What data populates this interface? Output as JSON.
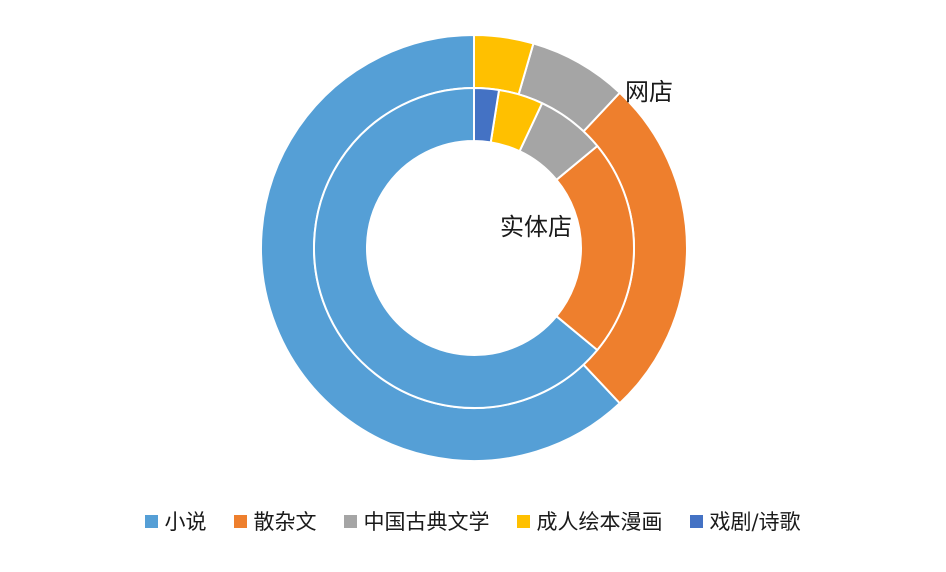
{
  "chart_data": {
    "type": "donut",
    "categories": [
      "小说",
      "散杂文",
      "中国古典文学",
      "成人绘本漫画",
      "戏剧/诗歌"
    ],
    "colors": [
      "#559FD6",
      "#EE7F2D",
      "#A5A5A5",
      "#FFC000",
      "#4472C4"
    ],
    "series": [
      {
        "name": "网店",
        "values": [
          62,
          26,
          7.5,
          4.5,
          0
        ]
      },
      {
        "name": "实体店",
        "values": [
          64,
          22,
          7,
          4.5,
          2.5
        ]
      }
    ],
    "legend_position": "bottom"
  }
}
